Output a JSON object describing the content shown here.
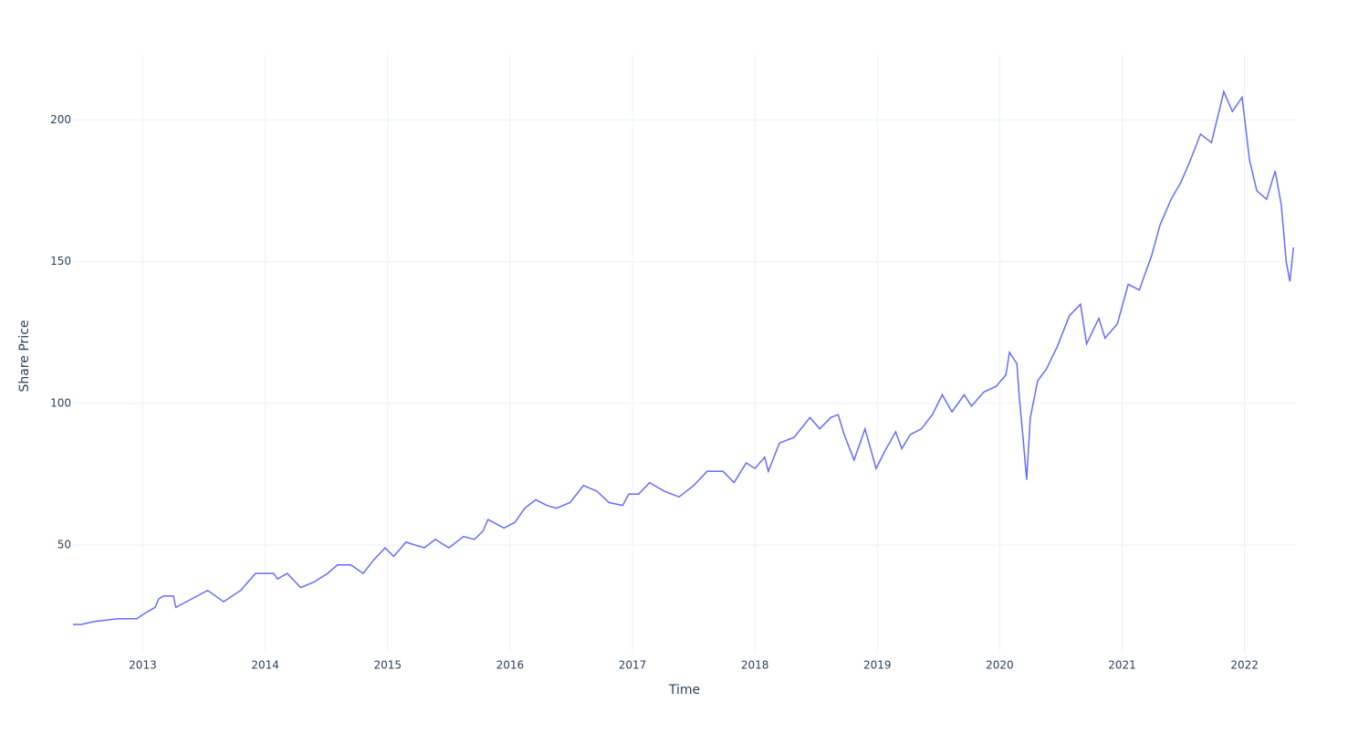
{
  "chart_data": {
    "type": "line",
    "x_label": "Time",
    "y_label": "Share Price",
    "x": [
      2012.43,
      2012.5,
      2012.6,
      2012.7,
      2012.8,
      2012.95,
      2013.02,
      2013.1,
      2013.13,
      2013.17,
      2013.25,
      2013.27,
      2013.4,
      2013.53,
      2013.66,
      2013.8,
      2013.92,
      2014.07,
      2014.1,
      2014.18,
      2014.29,
      2014.4,
      2014.51,
      2014.59,
      2014.7,
      2014.8,
      2014.89,
      2014.98,
      2015.05,
      2015.15,
      2015.3,
      2015.39,
      2015.5,
      2015.62,
      2015.71,
      2015.78,
      2015.82,
      2015.95,
      2016.04,
      2016.12,
      2016.21,
      2016.3,
      2016.38,
      2016.49,
      2016.6,
      2016.71,
      2016.81,
      2016.92,
      2016.97,
      2017.05,
      2017.14,
      2017.26,
      2017.38,
      2017.5,
      2017.61,
      2017.74,
      2017.83,
      2017.93,
      2018.0,
      2018.08,
      2018.11,
      2018.2,
      2018.32,
      2018.45,
      2018.53,
      2018.62,
      2018.68,
      2018.73,
      2018.81,
      2018.9,
      2018.99,
      2019.06,
      2019.15,
      2019.2,
      2019.27,
      2019.36,
      2019.45,
      2019.53,
      2019.61,
      2019.71,
      2019.77,
      2019.87,
      2019.97,
      2020.05,
      2020.08,
      2020.14,
      2020.16,
      2020.19,
      2020.22,
      2020.25,
      2020.31,
      2020.38,
      2020.47,
      2020.57,
      2020.66,
      2020.71,
      2020.81,
      2020.86,
      2020.96,
      2021.05,
      2021.14,
      2021.24,
      2021.31,
      2021.4,
      2021.48,
      2021.55,
      2021.64,
      2021.73,
      2021.83,
      2021.9,
      2021.98,
      2022.04,
      2022.1,
      2022.18,
      2022.25,
      2022.3,
      2022.34,
      2022.37,
      2022.4
    ],
    "series": [
      {
        "color": "#636efa",
        "values": [
          22,
          22,
          23,
          23.5,
          24,
          24,
          26,
          28,
          31,
          32,
          32,
          28,
          31,
          34,
          30,
          34,
          40,
          40,
          38,
          40,
          35,
          37,
          40,
          43,
          43,
          40,
          45,
          49,
          46,
          51,
          49,
          52,
          49,
          53,
          52,
          55,
          59,
          56,
          58,
          63,
          66,
          64,
          63,
          65,
          71,
          69,
          65,
          64,
          68,
          68,
          72,
          69,
          67,
          71,
          76,
          76,
          72,
          79,
          77,
          81,
          76,
          86,
          88,
          95,
          91,
          95,
          96,
          89,
          80,
          91,
          77,
          83,
          90,
          84,
          89,
          91,
          96,
          103,
          97,
          103,
          99,
          104,
          106,
          110,
          118,
          114,
          102,
          88,
          73,
          95,
          108,
          112,
          120,
          131,
          135,
          121,
          130,
          123,
          128,
          142,
          140,
          152,
          163,
          172,
          178,
          185,
          195,
          192,
          210,
          203,
          208,
          186,
          175,
          172,
          182,
          170,
          150,
          143,
          155
        ]
      }
    ],
    "xlim": [
      2012.43,
      2022.42
    ],
    "xticks": [
      2013,
      2014,
      2015,
      2016,
      2017,
      2018,
      2019,
      2020,
      2021,
      2022
    ],
    "ylim": [
      12,
      223
    ],
    "yticks": [
      50,
      100,
      150,
      200
    ],
    "grid": true
  }
}
